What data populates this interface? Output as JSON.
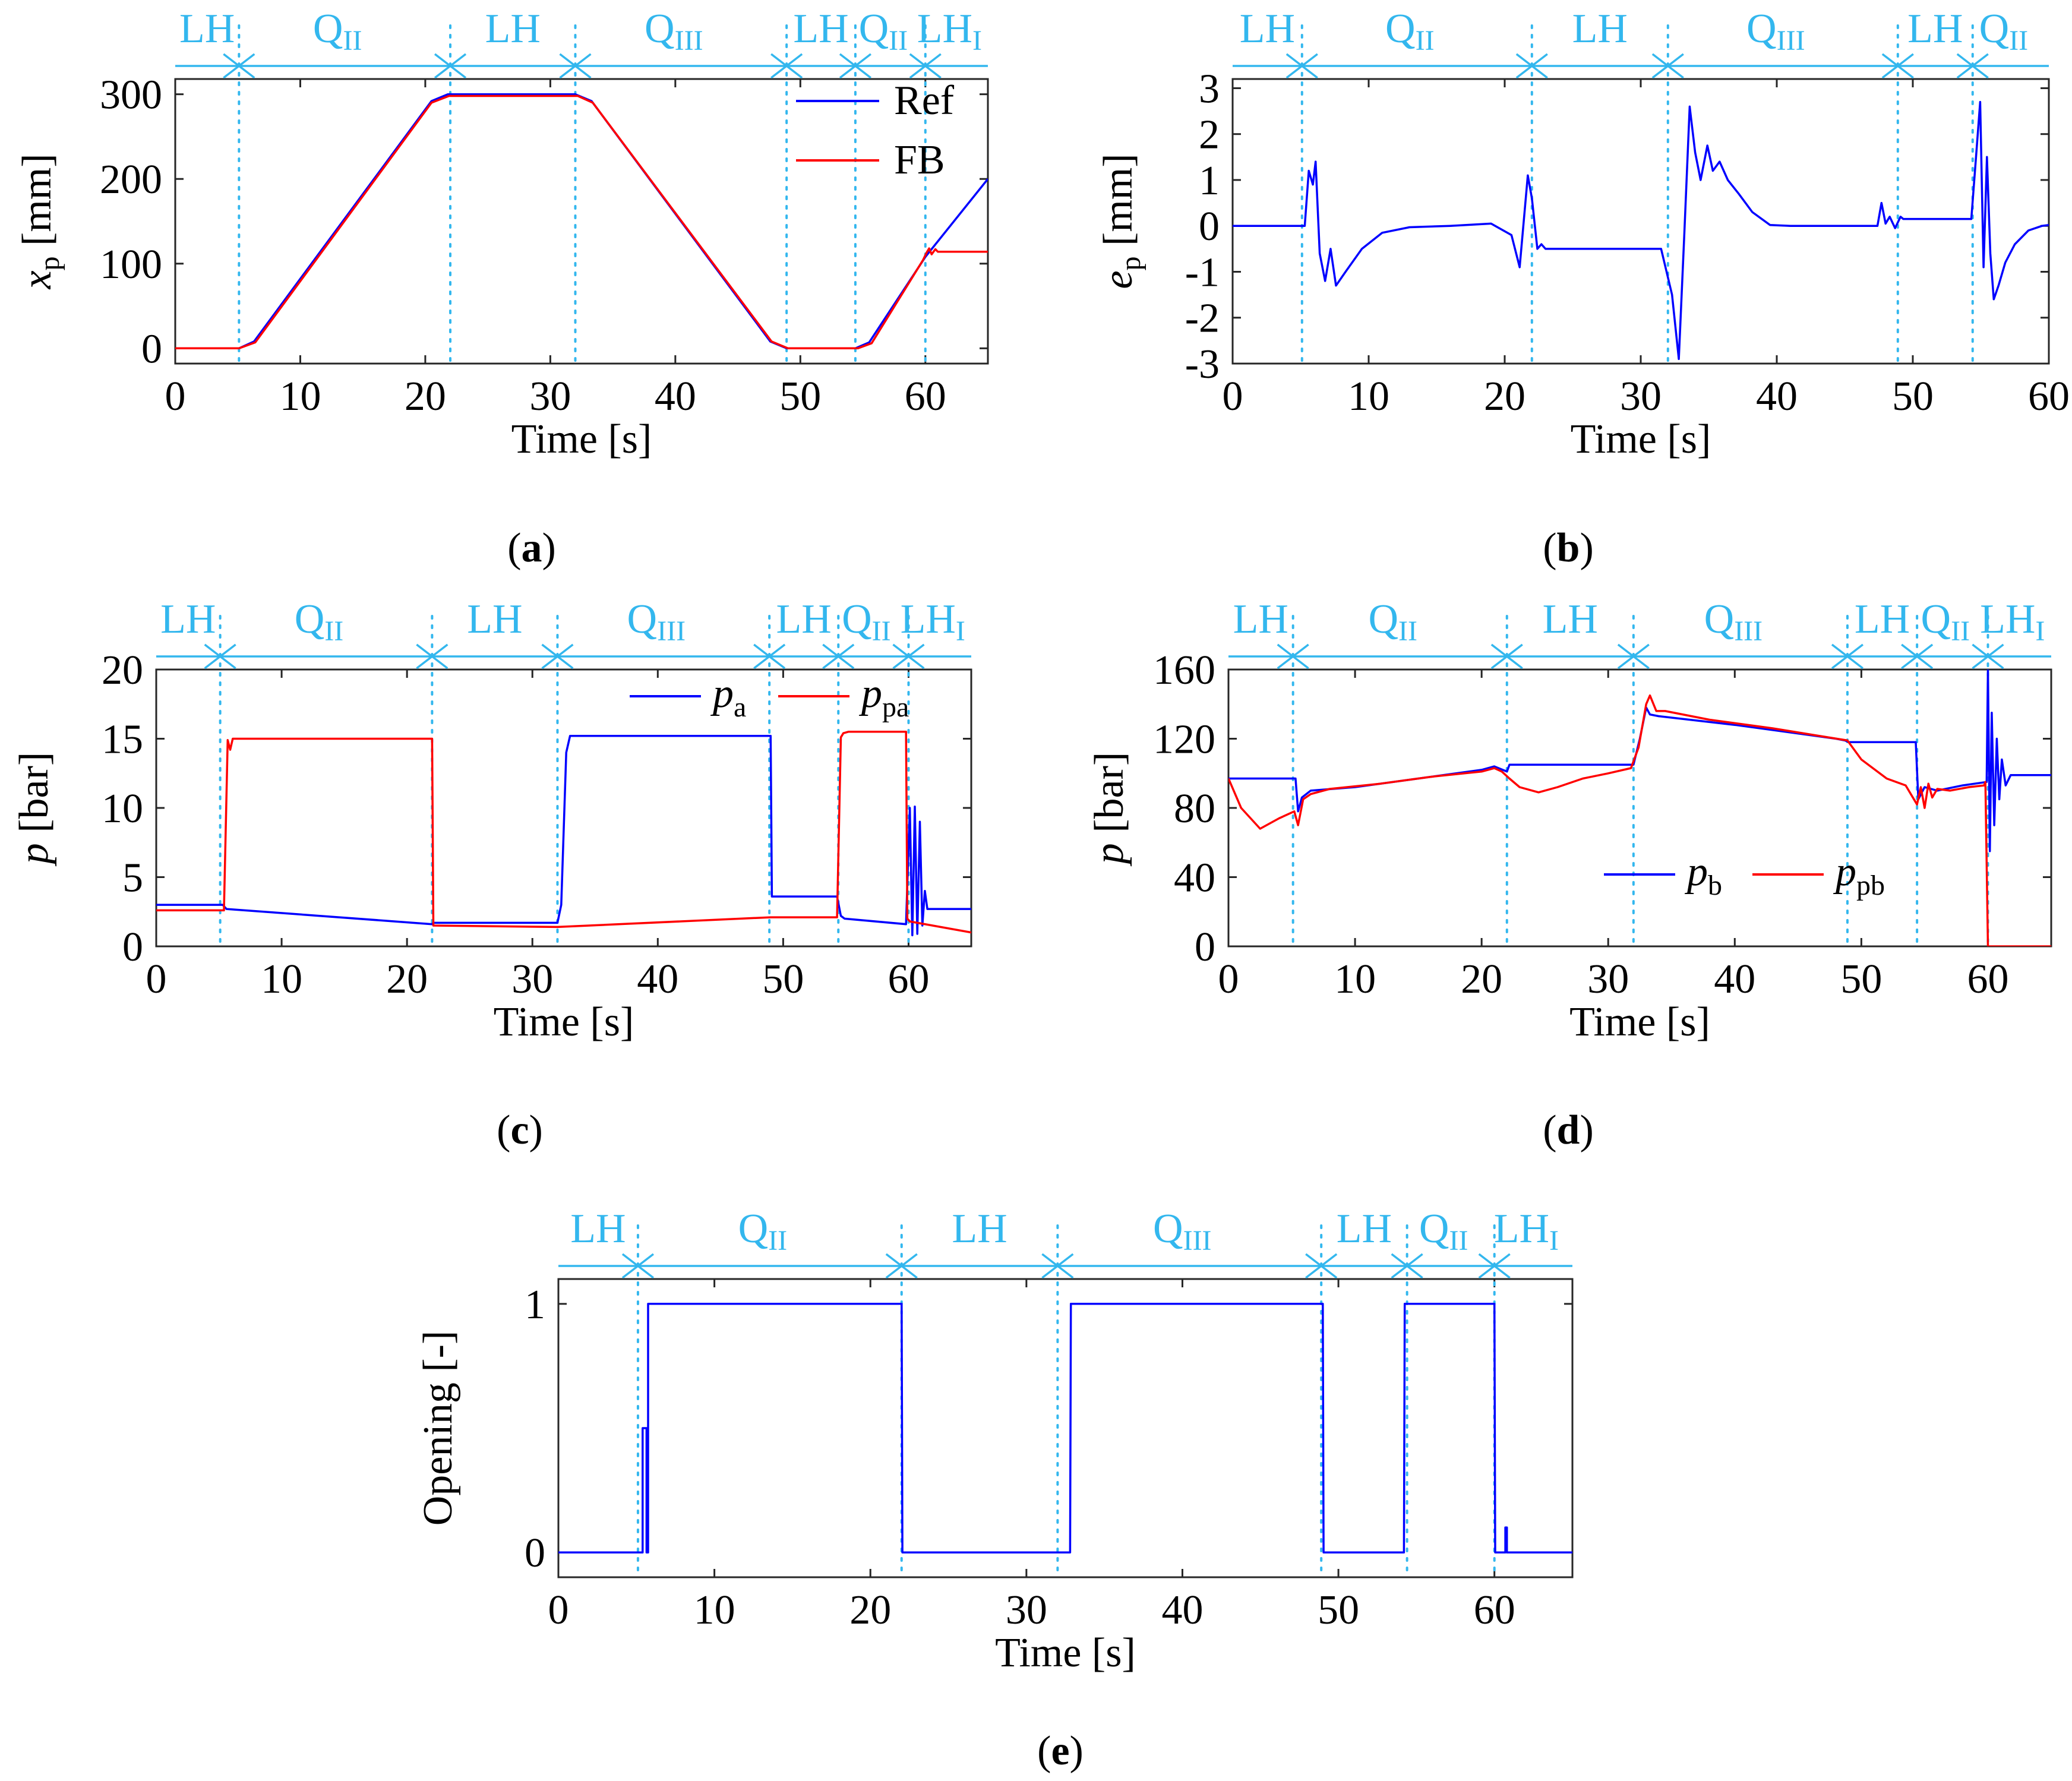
{
  "colors": {
    "ref": "#0000ff",
    "fb": "#ff0000",
    "phase": "#33b7ee",
    "axis": "#262626"
  },
  "chart_data": [
    {
      "id": "a",
      "type": "line",
      "caption": "a",
      "xlabel": "Time [s]",
      "ylabel_main": "x",
      "ylabel_sub": "p",
      "ylabel_unit": "[mm]",
      "xlim": [
        0,
        65
      ],
      "ylim": [
        -18,
        318
      ],
      "xticks": [
        0,
        10,
        20,
        30,
        40,
        50,
        60
      ],
      "yticks": [
        0,
        100,
        200,
        300
      ],
      "vlines": [
        5.1,
        22,
        32,
        48.9,
        54.4,
        60
      ],
      "phases": [
        {
          "main": "LH",
          "sub": "",
          "from": 0,
          "to": 5.1
        },
        {
          "main": "Q",
          "sub": "II",
          "from": 5.1,
          "to": 22
        },
        {
          "main": "LH",
          "sub": "",
          "from": 22,
          "to": 32
        },
        {
          "main": "Q",
          "sub": "III",
          "from": 32,
          "to": 48.9
        },
        {
          "main": "LH",
          "sub": "",
          "from": 48.9,
          "to": 54.4
        },
        {
          "main": "Q",
          "sub": "II",
          "from": 54.4,
          "to": 60
        },
        {
          "main": "LH",
          "sub": "I",
          "from": 60,
          "to": 65
        }
      ],
      "legend": {
        "placement": "top-right",
        "items": [
          {
            "label_main": "Ref",
            "label_sub": "",
            "series": 0
          },
          {
            "label_main": "FB",
            "label_sub": "",
            "series": 1
          }
        ]
      },
      "series": [
        {
          "name": "Ref",
          "color": "ref",
          "x": [
            0,
            5.1,
            6.3,
            20.5,
            21.8,
            32,
            33.3,
            47.6,
            48.9,
            54.4,
            55.5,
            60,
            65
          ],
          "y": [
            0,
            0,
            8,
            292,
            300,
            300,
            292,
            8,
            0,
            0,
            7,
            108,
            200
          ]
        },
        {
          "name": "FB",
          "color": "fb",
          "x": [
            0,
            5.1,
            6.4,
            20.5,
            21.9,
            32.2,
            33.4,
            47.7,
            49,
            54.6,
            55.7,
            59.8,
            60.1,
            60.3,
            60.5,
            60.8,
            61,
            65
          ],
          "y": [
            0,
            0,
            7,
            290,
            298,
            298,
            290,
            8,
            0,
            0,
            6,
            104,
            113,
            118,
            111,
            117,
            114,
            114
          ]
        }
      ]
    },
    {
      "id": "b",
      "type": "line",
      "caption": "b",
      "xlabel": "Time [s]",
      "ylabel_main": "e",
      "ylabel_sub": "p",
      "ylabel_unit": "[mm]",
      "xlim": [
        0,
        60
      ],
      "ylim": [
        -3,
        3.2
      ],
      "xticks": [
        0,
        10,
        20,
        30,
        40,
        50,
        60
      ],
      "yticks": [
        -3,
        -2,
        -1,
        0,
        1,
        2,
        3
      ],
      "vlines": [
        5.1,
        22,
        32,
        48.9,
        54.4
      ],
      "phases": [
        {
          "main": "LH",
          "sub": "",
          "from": 0,
          "to": 5.1
        },
        {
          "main": "Q",
          "sub": "II",
          "from": 5.1,
          "to": 22
        },
        {
          "main": "LH",
          "sub": "",
          "from": 22,
          "to": 32
        },
        {
          "main": "Q",
          "sub": "III",
          "from": 32,
          "to": 48.9
        },
        {
          "main": "LH",
          "sub": "",
          "from": 48.9,
          "to": 54.4
        },
        {
          "main": "Q",
          "sub": "II",
          "from": 54.4,
          "to": 60
        }
      ],
      "legend": null,
      "series": [
        {
          "name": "",
          "color": "ref",
          "x": [
            0,
            5.3,
            5.6,
            5.9,
            6.1,
            6.4,
            6.8,
            7.2,
            7.6,
            8.3,
            9.5,
            11,
            13,
            16,
            19,
            20.5,
            21.1,
            21.7,
            22,
            22.4,
            22.7,
            23,
            31.5,
            32.3,
            32.8,
            33.2,
            33.6,
            34,
            34.4,
            34.9,
            35.3,
            35.8,
            36.4,
            37.2,
            38.2,
            39.5,
            41,
            47.4,
            47.7,
            48,
            48.3,
            48.7,
            49.1,
            49.3,
            54.3,
            54.7,
            54.95,
            55.2,
            55.45,
            55.7,
            55.95,
            56.3,
            56.8,
            57.5,
            58.5,
            59.5,
            60
          ],
          "y": [
            0,
            0,
            1.2,
            0.9,
            1.4,
            -0.6,
            -1.2,
            -0.5,
            -1.3,
            -1.0,
            -0.5,
            -0.15,
            -0.03,
            0,
            0.05,
            -0.2,
            -0.9,
            1.1,
            0.6,
            -0.5,
            -0.4,
            -0.5,
            -0.5,
            -1.5,
            -2.9,
            -0.2,
            2.6,
            1.6,
            1.0,
            1.75,
            1.2,
            1.4,
            1.0,
            0.7,
            0.3,
            0.02,
            0,
            0,
            0.5,
            0.05,
            0.2,
            -0.05,
            0.2,
            0.15,
            0.15,
            1.7,
            2.7,
            -0.9,
            1.5,
            -0.6,
            -1.6,
            -1.3,
            -0.8,
            -0.4,
            -0.1,
            0,
            0.02
          ]
        }
      ]
    },
    {
      "id": "c",
      "type": "line",
      "caption": "c",
      "xlabel": "Time [s]",
      "ylabel_main": "p",
      "ylabel_sub": "",
      "ylabel_unit": "[bar]",
      "xlim": [
        0,
        65
      ],
      "ylim": [
        0,
        20
      ],
      "xticks": [
        0,
        10,
        20,
        30,
        40,
        50,
        60
      ],
      "yticks": [
        0,
        5,
        10,
        15,
        20
      ],
      "vlines": [
        5.1,
        22,
        32,
        48.9,
        54.4,
        60
      ],
      "phases": [
        {
          "main": "LH",
          "sub": "",
          "from": 0,
          "to": 5.1
        },
        {
          "main": "Q",
          "sub": "II",
          "from": 5.1,
          "to": 22
        },
        {
          "main": "LH",
          "sub": "",
          "from": 22,
          "to": 32
        },
        {
          "main": "Q",
          "sub": "III",
          "from": 32,
          "to": 48.9
        },
        {
          "main": "LH",
          "sub": "",
          "from": 48.9,
          "to": 54.4
        },
        {
          "main": "Q",
          "sub": "II",
          "from": 54.4,
          "to": 60
        },
        {
          "main": "LH",
          "sub": "I",
          "from": 60,
          "to": 65
        }
      ],
      "legend": {
        "placement": "top-right",
        "items": [
          {
            "label_main": "p",
            "label_sub": "a",
            "series": 0
          },
          {
            "label_main": "p",
            "label_sub": "pa",
            "series": 1
          }
        ]
      },
      "series": [
        {
          "name": "p_a",
          "color": "ref",
          "x": [
            0,
            5.3,
            5.6,
            22,
            22.1,
            32,
            32.3,
            32.7,
            33,
            49,
            49.1,
            54.3,
            54.6,
            54.9,
            59.8,
            60.1,
            60.3,
            60.5,
            60.7,
            60.9,
            61.1,
            61.3,
            61.5,
            65
          ],
          "y": [
            3.0,
            3.0,
            2.7,
            1.6,
            1.7,
            1.7,
            3.0,
            14.0,
            15.2,
            15.2,
            3.6,
            3.6,
            2.2,
            2.0,
            1.6,
            10.0,
            0.8,
            10.1,
            0.9,
            9.0,
            1.5,
            4.0,
            2.7,
            2.7
          ]
        },
        {
          "name": "p_pa",
          "color": "fb",
          "x": [
            0,
            5.4,
            5.7,
            5.9,
            6.1,
            22,
            22.1,
            32,
            49,
            54.3,
            54.6,
            54.8,
            55.2,
            59.8,
            59.9,
            60.1,
            65
          ],
          "y": [
            2.6,
            2.6,
            14.9,
            14.2,
            15.0,
            15.0,
            1.5,
            1.4,
            2.1,
            2.1,
            15.1,
            15.4,
            15.5,
            15.5,
            2.0,
            1.8,
            1.0
          ]
        }
      ]
    },
    {
      "id": "d",
      "type": "line",
      "caption": "d",
      "xlabel": "Time [s]",
      "ylabel_main": "p",
      "ylabel_sub": "",
      "ylabel_unit": "[bar]",
      "xlim": [
        0,
        65
      ],
      "ylim": [
        0,
        160
      ],
      "xticks": [
        0,
        10,
        20,
        30,
        40,
        50,
        60
      ],
      "yticks": [
        0,
        40,
        80,
        120,
        160
      ],
      "vlines": [
        5.1,
        22,
        32,
        48.9,
        54.4,
        60
      ],
      "phases": [
        {
          "main": "LH",
          "sub": "",
          "from": 0,
          "to": 5.1
        },
        {
          "main": "Q",
          "sub": "II",
          "from": 5.1,
          "to": 22
        },
        {
          "main": "LH",
          "sub": "",
          "from": 22,
          "to": 32
        },
        {
          "main": "Q",
          "sub": "III",
          "from": 32,
          "to": 48.9
        },
        {
          "main": "LH",
          "sub": "",
          "from": 48.9,
          "to": 54.4
        },
        {
          "main": "Q",
          "sub": "II",
          "from": 54.4,
          "to": 60
        },
        {
          "main": "LH",
          "sub": "I",
          "from": 60,
          "to": 65
        }
      ],
      "legend": {
        "placement": "bottom-right",
        "items": [
          {
            "label_main": "p",
            "label_sub": "b",
            "series": 0
          },
          {
            "label_main": "p",
            "label_sub": "pb",
            "series": 1
          }
        ]
      },
      "series": [
        {
          "name": "p_b",
          "color": "ref",
          "x": [
            0,
            5.3,
            5.5,
            5.8,
            6.5,
            10,
            15,
            20,
            21,
            22,
            22.2,
            32,
            32.5,
            33,
            33.3,
            34,
            40,
            48,
            48.7,
            49,
            54,
            54.3,
            54.5,
            55,
            56,
            58,
            59.9,
            60,
            60.15,
            60.3,
            60.5,
            60.7,
            60.9,
            61.1,
            61.4,
            61.8,
            65
          ],
          "y": [
            97,
            97,
            78,
            86,
            90,
            92,
            97,
            102,
            104,
            101,
            105,
            105,
            120,
            138,
            134,
            133,
            128,
            120,
            119,
            118,
            118,
            118,
            85,
            92,
            90,
            93,
            95,
            160,
            55,
            135,
            70,
            120,
            85,
            108,
            93,
            99,
            99
          ]
        },
        {
          "name": "p_pb",
          "color": "fb",
          "x": [
            0,
            1,
            2.5,
            4,
            5.2,
            5.5,
            5.9,
            6.5,
            8,
            12,
            16,
            20,
            21,
            21.6,
            22.2,
            23,
            24.5,
            26,
            28,
            30,
            31.8,
            32.4,
            33,
            33.3,
            33.8,
            34.5,
            38,
            43,
            48.9,
            50,
            52,
            53.5,
            54.4,
            54.7,
            55,
            55.3,
            55.6,
            56,
            57,
            58.5,
            59.7,
            59.8,
            60,
            65
          ],
          "y": [
            97,
            80,
            68,
            74,
            78,
            70,
            85,
            88,
            91,
            94,
            98,
            101,
            103,
            101,
            97,
            92,
            89,
            92,
            97,
            100,
            103,
            115,
            140,
            145,
            136,
            136,
            131,
            126,
            119,
            108,
            97,
            93,
            82,
            92,
            80,
            94,
            86,
            91,
            90,
            92,
            93,
            95,
            0,
            0
          ]
        }
      ]
    },
    {
      "id": "e",
      "type": "line",
      "caption": "e",
      "xlabel": "Time [s]",
      "ylabel_main": "Opening [-]",
      "ylabel_sub": "",
      "ylabel_unit": "",
      "xlim": [
        0,
        65
      ],
      "ylim": [
        -0.1,
        1.1
      ],
      "xticks": [
        0,
        10,
        20,
        30,
        40,
        50,
        60
      ],
      "yticks": [
        0,
        1
      ],
      "vlines": [
        5.1,
        22,
        32,
        48.9,
        54.4,
        60
      ],
      "phases": [
        {
          "main": "LH",
          "sub": "",
          "from": 0,
          "to": 5.1
        },
        {
          "main": "Q",
          "sub": "II",
          "from": 5.1,
          "to": 22
        },
        {
          "main": "LH",
          "sub": "",
          "from": 22,
          "to": 32
        },
        {
          "main": "Q",
          "sub": "III",
          "from": 32,
          "to": 48.9
        },
        {
          "main": "LH",
          "sub": "",
          "from": 48.9,
          "to": 54.4
        },
        {
          "main": "Q",
          "sub": "II",
          "from": 54.4,
          "to": 60
        },
        {
          "main": "LH",
          "sub": "I",
          "from": 60,
          "to": 65
        }
      ],
      "legend": null,
      "series": [
        {
          "name": "",
          "color": "ref",
          "x": [
            0,
            5.4,
            5.4,
            5.65,
            5.65,
            5.75,
            5.75,
            22,
            22.05,
            32.8,
            32.85,
            49,
            49.05,
            54.2,
            54.25,
            60,
            60.05,
            60.7,
            60.7,
            60.8,
            60.8,
            65
          ],
          "y": [
            0,
            0,
            0.5,
            0.5,
            0,
            0,
            1,
            1,
            0,
            0,
            1,
            1,
            0,
            0,
            1,
            1,
            0,
            0,
            0.1,
            0.1,
            0,
            0
          ]
        }
      ]
    }
  ]
}
